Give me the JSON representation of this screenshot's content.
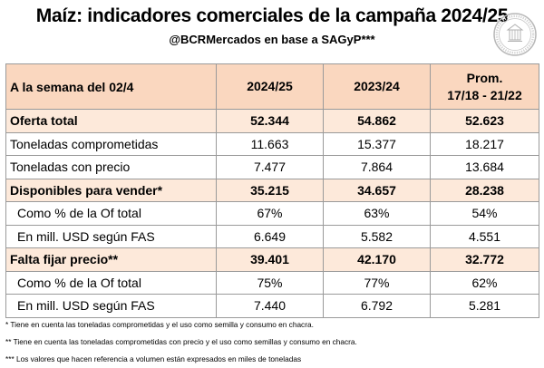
{
  "header": {
    "title": "Maíz: indicadores comerciales de la campaña 2024/25",
    "subtitle": "@BCRMercados en base a SAGyP***"
  },
  "logo": {
    "icon": "bcr-seal-icon",
    "color": "#b8b8b8"
  },
  "table": {
    "header": {
      "label": "A la semana del 02/4",
      "col1": "2024/25",
      "col2": "2023/24",
      "col3_line1": "Prom.",
      "col3_line2": "17/18 - 21/22"
    },
    "rows": [
      {
        "label": "Oferta total",
        "v1": "52.344",
        "v2": "54.862",
        "v3": "52.623"
      },
      {
        "label": "Toneladas comprometidas",
        "v1": "11.663",
        "v2": "15.377",
        "v3": "18.217"
      },
      {
        "label": "Toneladas con precio",
        "v1": "7.477",
        "v2": "7.864",
        "v3": "13.684"
      },
      {
        "label": "Disponibles para vender*",
        "v1": "35.215",
        "v2": "34.657",
        "v3": "28.238"
      },
      {
        "label": "Como % de la Of total",
        "v1": "67%",
        "v2": "63%",
        "v3": "54%"
      },
      {
        "label": "En mill. USD según FAS",
        "v1": "6.649",
        "v2": "5.582",
        "v3": "4.551"
      },
      {
        "label": "Falta fijar precio**",
        "v1": "39.401",
        "v2": "42.170",
        "v3": "32.772"
      },
      {
        "label": "Como % de la Of total",
        "v1": "75%",
        "v2": "77%",
        "v3": "62%"
      },
      {
        "label": "En mill. USD según FAS",
        "v1": "7.440",
        "v2": "6.792",
        "v3": "5.281"
      }
    ]
  },
  "notes": [
    "* Tiene en cuenta las toneladas comprometidas y el uso como semilla y consumo en chacra.",
    "** Tiene en cuenta las toneladas comprometidas con precio y el uso como semillas y consumo en chacra.",
    "*** Los valores que hacen referencia a volumen están expresados en miles de toneladas"
  ],
  "colors": {
    "header_bg": "#fad7bf",
    "highlight_bg": "#fde9da",
    "border": "#9a9a9a"
  }
}
